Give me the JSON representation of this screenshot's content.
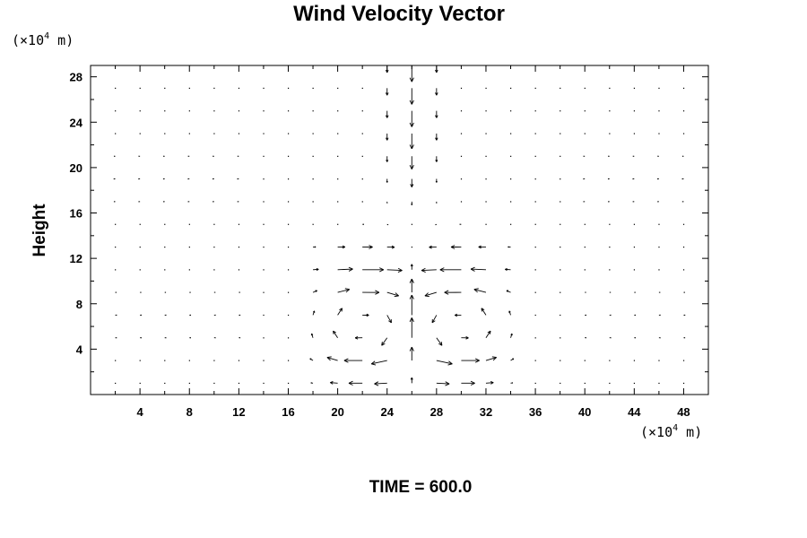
{
  "chart_data": {
    "type": "vector",
    "title": "Wind Velocity Vector",
    "ylabel": "Height",
    "x_unit": {
      "prefix": "(×10",
      "exponent": "4",
      "suffix": " m)"
    },
    "y_unit": {
      "prefix": "(×10",
      "exponent": "4",
      "suffix": " m)"
    },
    "xlim": [
      0,
      50
    ],
    "ylim": [
      0,
      29
    ],
    "x_ticks": [
      4,
      8,
      12,
      16,
      20,
      24,
      28,
      32,
      36,
      40,
      44,
      48
    ],
    "y_ticks": [
      4,
      8,
      12,
      16,
      20,
      24,
      28
    ],
    "x_minor_step": 2,
    "y_minor_step": 2,
    "grid_x": [
      2,
      4,
      6,
      8,
      10,
      12,
      14,
      16,
      18,
      20,
      22,
      24,
      26,
      28,
      30,
      32,
      34,
      36,
      38,
      40,
      42,
      44,
      46,
      48
    ],
    "grid_y": [
      1,
      3,
      5,
      7,
      9,
      11,
      13,
      15,
      17,
      19,
      21,
      23,
      25,
      27,
      29
    ],
    "field": {
      "center_x": 26,
      "plume_height": 8,
      "inflow_height": 11,
      "vortex_right_center": [
        30,
        6
      ],
      "vortex_left_center": [
        22,
        6
      ]
    },
    "annotation": "TIME = 600.0"
  }
}
